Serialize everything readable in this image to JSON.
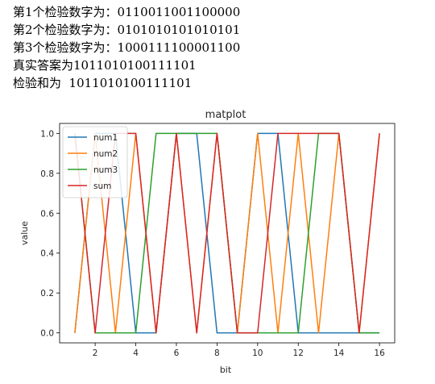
{
  "output_lines": [
    "第1个检验数字为：0110011001100000",
    "第2个检验数字为：0101010101010101",
    "第3个检验数字为：1000111100001100",
    "真实答案为1011010100111101",
    "检验和为  1011010100111101"
  ],
  "chart_data": {
    "type": "line",
    "title": "matplot",
    "xlabel": "bit",
    "ylabel": "value",
    "xlim": [
      0.25,
      16.75
    ],
    "ylim": [
      -0.05,
      1.05
    ],
    "xticks": [
      2,
      4,
      6,
      8,
      10,
      12,
      14,
      16
    ],
    "yticks": [
      0.0,
      0.2,
      0.4,
      0.6,
      0.8,
      1.0
    ],
    "xtick_labels": [
      "2",
      "4",
      "6",
      "8",
      "10",
      "12",
      "14",
      "16"
    ],
    "ytick_labels": [
      "0.0",
      "0.2",
      "0.4",
      "0.6",
      "0.8",
      "1.0"
    ],
    "grid": false,
    "legend_position": "top-left",
    "x": [
      1,
      2,
      3,
      4,
      5,
      6,
      7,
      8,
      9,
      10,
      11,
      12,
      13,
      14,
      15,
      16
    ],
    "series": [
      {
        "name": "num1",
        "color": "#1f77b4",
        "values": [
          0,
          1,
          1,
          0,
          0,
          1,
          1,
          0,
          0,
          1,
          1,
          0,
          0,
          0,
          0,
          0
        ]
      },
      {
        "name": "num2",
        "color": "#ff7f0e",
        "values": [
          0,
          1,
          0,
          1,
          0,
          1,
          0,
          1,
          0,
          1,
          0,
          1,
          0,
          1,
          0,
          1
        ]
      },
      {
        "name": "num3",
        "color": "#2ca02c",
        "values": [
          1,
          0,
          0,
          0,
          1,
          1,
          1,
          1,
          0,
          0,
          0,
          0,
          1,
          1,
          0,
          0
        ]
      },
      {
        "name": "sum",
        "color": "#d62728",
        "values": [
          1,
          0,
          1,
          1,
          0,
          1,
          0,
          1,
          0,
          0,
          1,
          1,
          1,
          1,
          0,
          1
        ]
      }
    ]
  }
}
